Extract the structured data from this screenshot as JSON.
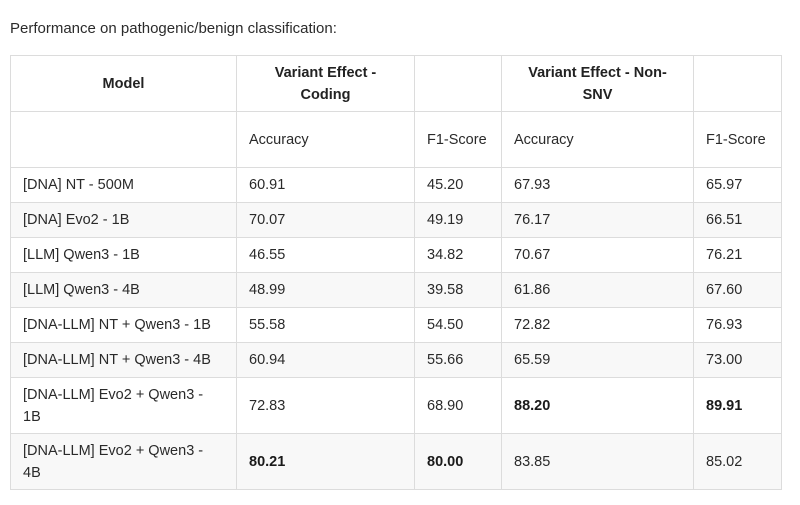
{
  "caption": "Performance on pathogenic/benign classification:",
  "table": {
    "header": {
      "model": "Model",
      "group1": "Variant Effect - Coding",
      "group2": "Variant Effect - Non-SNV"
    },
    "subheader": {
      "acc1": "Accuracy",
      "f1a": "F1-Score",
      "acc2": "Accuracy",
      "f1b": "F1-Score"
    },
    "rows": [
      {
        "model": "[DNA] NT - 500M",
        "acc1": "60.91",
        "f1a": "45.20",
        "acc2": "67.93",
        "f1b": "65.97"
      },
      {
        "model": "[DNA] Evo2 - 1B",
        "acc1": "70.07",
        "f1a": "49.19",
        "acc2": "76.17",
        "f1b": "66.51"
      },
      {
        "model": "[LLM] Qwen3 - 1B",
        "acc1": "46.55",
        "f1a": "34.82",
        "acc2": "70.67",
        "f1b": "76.21"
      },
      {
        "model": "[LLM] Qwen3 - 4B",
        "acc1": "48.99",
        "f1a": "39.58",
        "acc2": "61.86",
        "f1b": "67.60"
      },
      {
        "model": "[DNA-LLM] NT + Qwen3 - 1B",
        "acc1": "55.58",
        "f1a": "54.50",
        "acc2": "72.82",
        "f1b": "76.93"
      },
      {
        "model": "[DNA-LLM] NT + Qwen3 - 4B",
        "acc1": "60.94",
        "f1a": "55.66",
        "acc2": "65.59",
        "f1b": "73.00"
      },
      {
        "model": "[DNA-LLM] Evo2 + Qwen3 - 1B",
        "acc1": "72.83",
        "f1a": "68.90",
        "acc2": "88.20",
        "f1b": "89.91"
      },
      {
        "model": "[DNA-LLM] Evo2 + Qwen3 - 4B",
        "acc1": "80.21",
        "f1a": "80.00",
        "acc2": "83.85",
        "f1b": "85.02"
      }
    ],
    "bold_cells": [
      "6.acc2",
      "6.f1b",
      "7.acc1",
      "7.f1a"
    ]
  }
}
